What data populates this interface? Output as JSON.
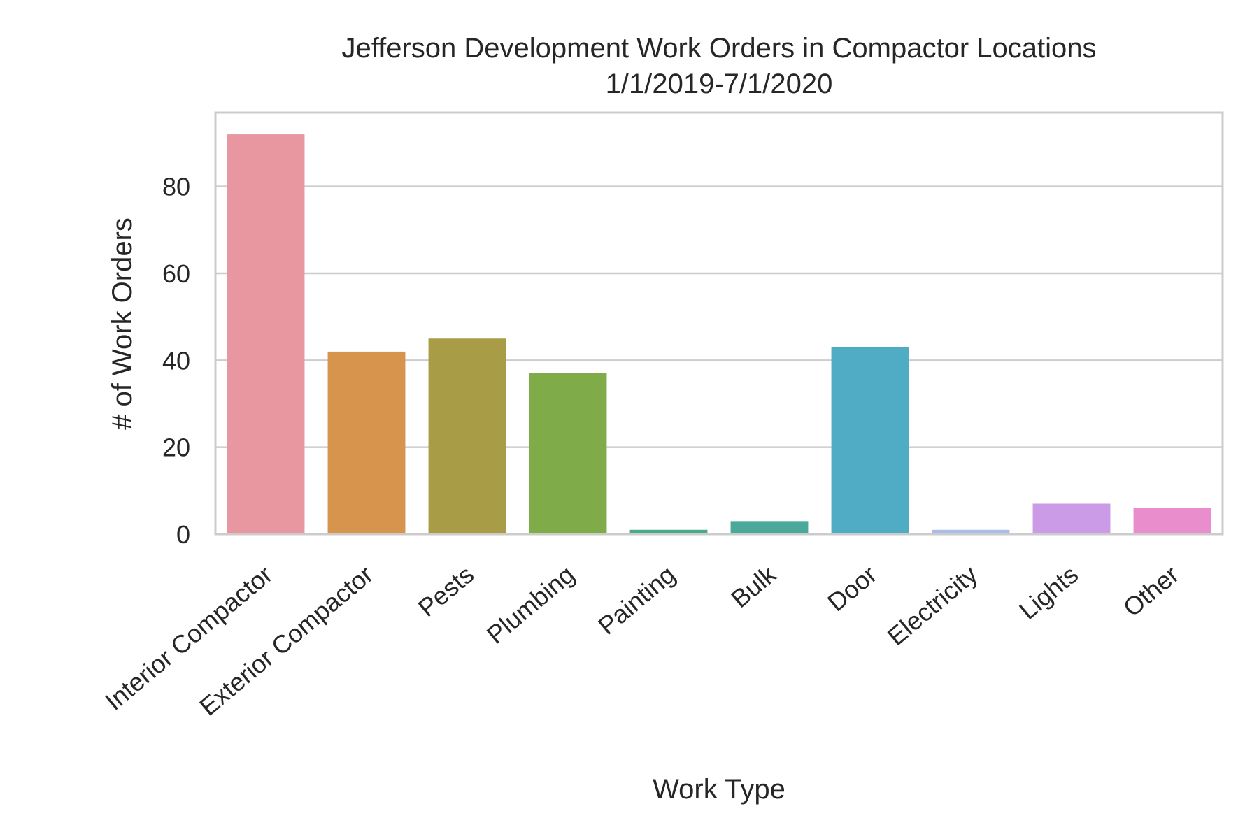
{
  "chart_data": {
    "type": "bar",
    "title": "Jefferson Development Work Orders in Compactor Locations",
    "subtitle": "1/1/2019-7/1/2020",
    "xlabel": "Work Type",
    "ylabel": "# of Work Orders",
    "categories": [
      "Interior Compactor",
      "Exterior Compactor",
      "Pests",
      "Plumbing",
      "Painting",
      "Bulk",
      "Door",
      "Electricity",
      "Lights",
      "Other"
    ],
    "values": [
      92,
      42,
      45,
      37,
      1,
      3,
      43,
      1,
      7,
      6
    ],
    "colors": [
      "#e8969f",
      "#d6944d",
      "#a99c47",
      "#7fab48",
      "#48a98b",
      "#4aa99b",
      "#50acc4",
      "#a9bde6",
      "#cc9be8",
      "#ea8dcc"
    ],
    "yticks": [
      0,
      20,
      40,
      60,
      80
    ],
    "ylim": [
      0,
      97
    ],
    "grid": true,
    "legend": "none"
  }
}
